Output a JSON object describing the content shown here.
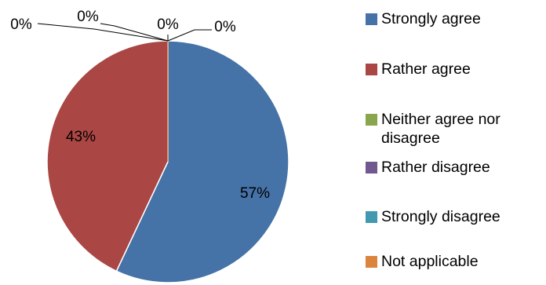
{
  "chart_data": {
    "type": "pie",
    "title": "",
    "slices": [
      {
        "label": "Strongly agree",
        "value": 57,
        "display": "57%",
        "color": "#4572a7"
      },
      {
        "label": "Rather agree",
        "value": 43,
        "display": "43%",
        "color": "#aa4643"
      },
      {
        "label": "Neither agree nor disagree",
        "value": 0,
        "display": "0%",
        "color": "#89a54e"
      },
      {
        "label": "Rather disagree",
        "value": 0,
        "display": "0%",
        "color": "#71588f"
      },
      {
        "label": "Strongly disagree",
        "value": 0,
        "display": "0%",
        "color": "#4198af"
      },
      {
        "label": "Not applicable",
        "value": 0,
        "display": "0%",
        "color": "#db843d"
      }
    ],
    "legend_position": "right"
  }
}
